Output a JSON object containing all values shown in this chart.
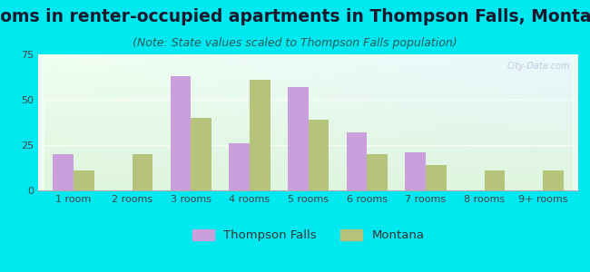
{
  "title": "Rooms in renter-occupied apartments in Thompson Falls, Montana",
  "subtitle": "(Note: State values scaled to Thompson Falls population)",
  "categories": [
    "1 room",
    "2 rooms",
    "3 rooms",
    "4 rooms",
    "5 rooms",
    "6 rooms",
    "7 rooms",
    "8 rooms",
    "9+ rooms"
  ],
  "thompson_falls": [
    20,
    0,
    63,
    26,
    57,
    32,
    21,
    0,
    0
  ],
  "montana": [
    11,
    20,
    40,
    61,
    39,
    20,
    14,
    11,
    11
  ],
  "tf_color": "#c9a0dc",
  "mt_color": "#b5c47a",
  "background_outer": "#00e8f0",
  "ylim": [
    0,
    75
  ],
  "yticks": [
    0,
    25,
    50,
    75
  ],
  "bar_width": 0.35,
  "title_fontsize": 13.5,
  "subtitle_fontsize": 9,
  "tick_fontsize": 8,
  "legend_fontsize": 9.5
}
